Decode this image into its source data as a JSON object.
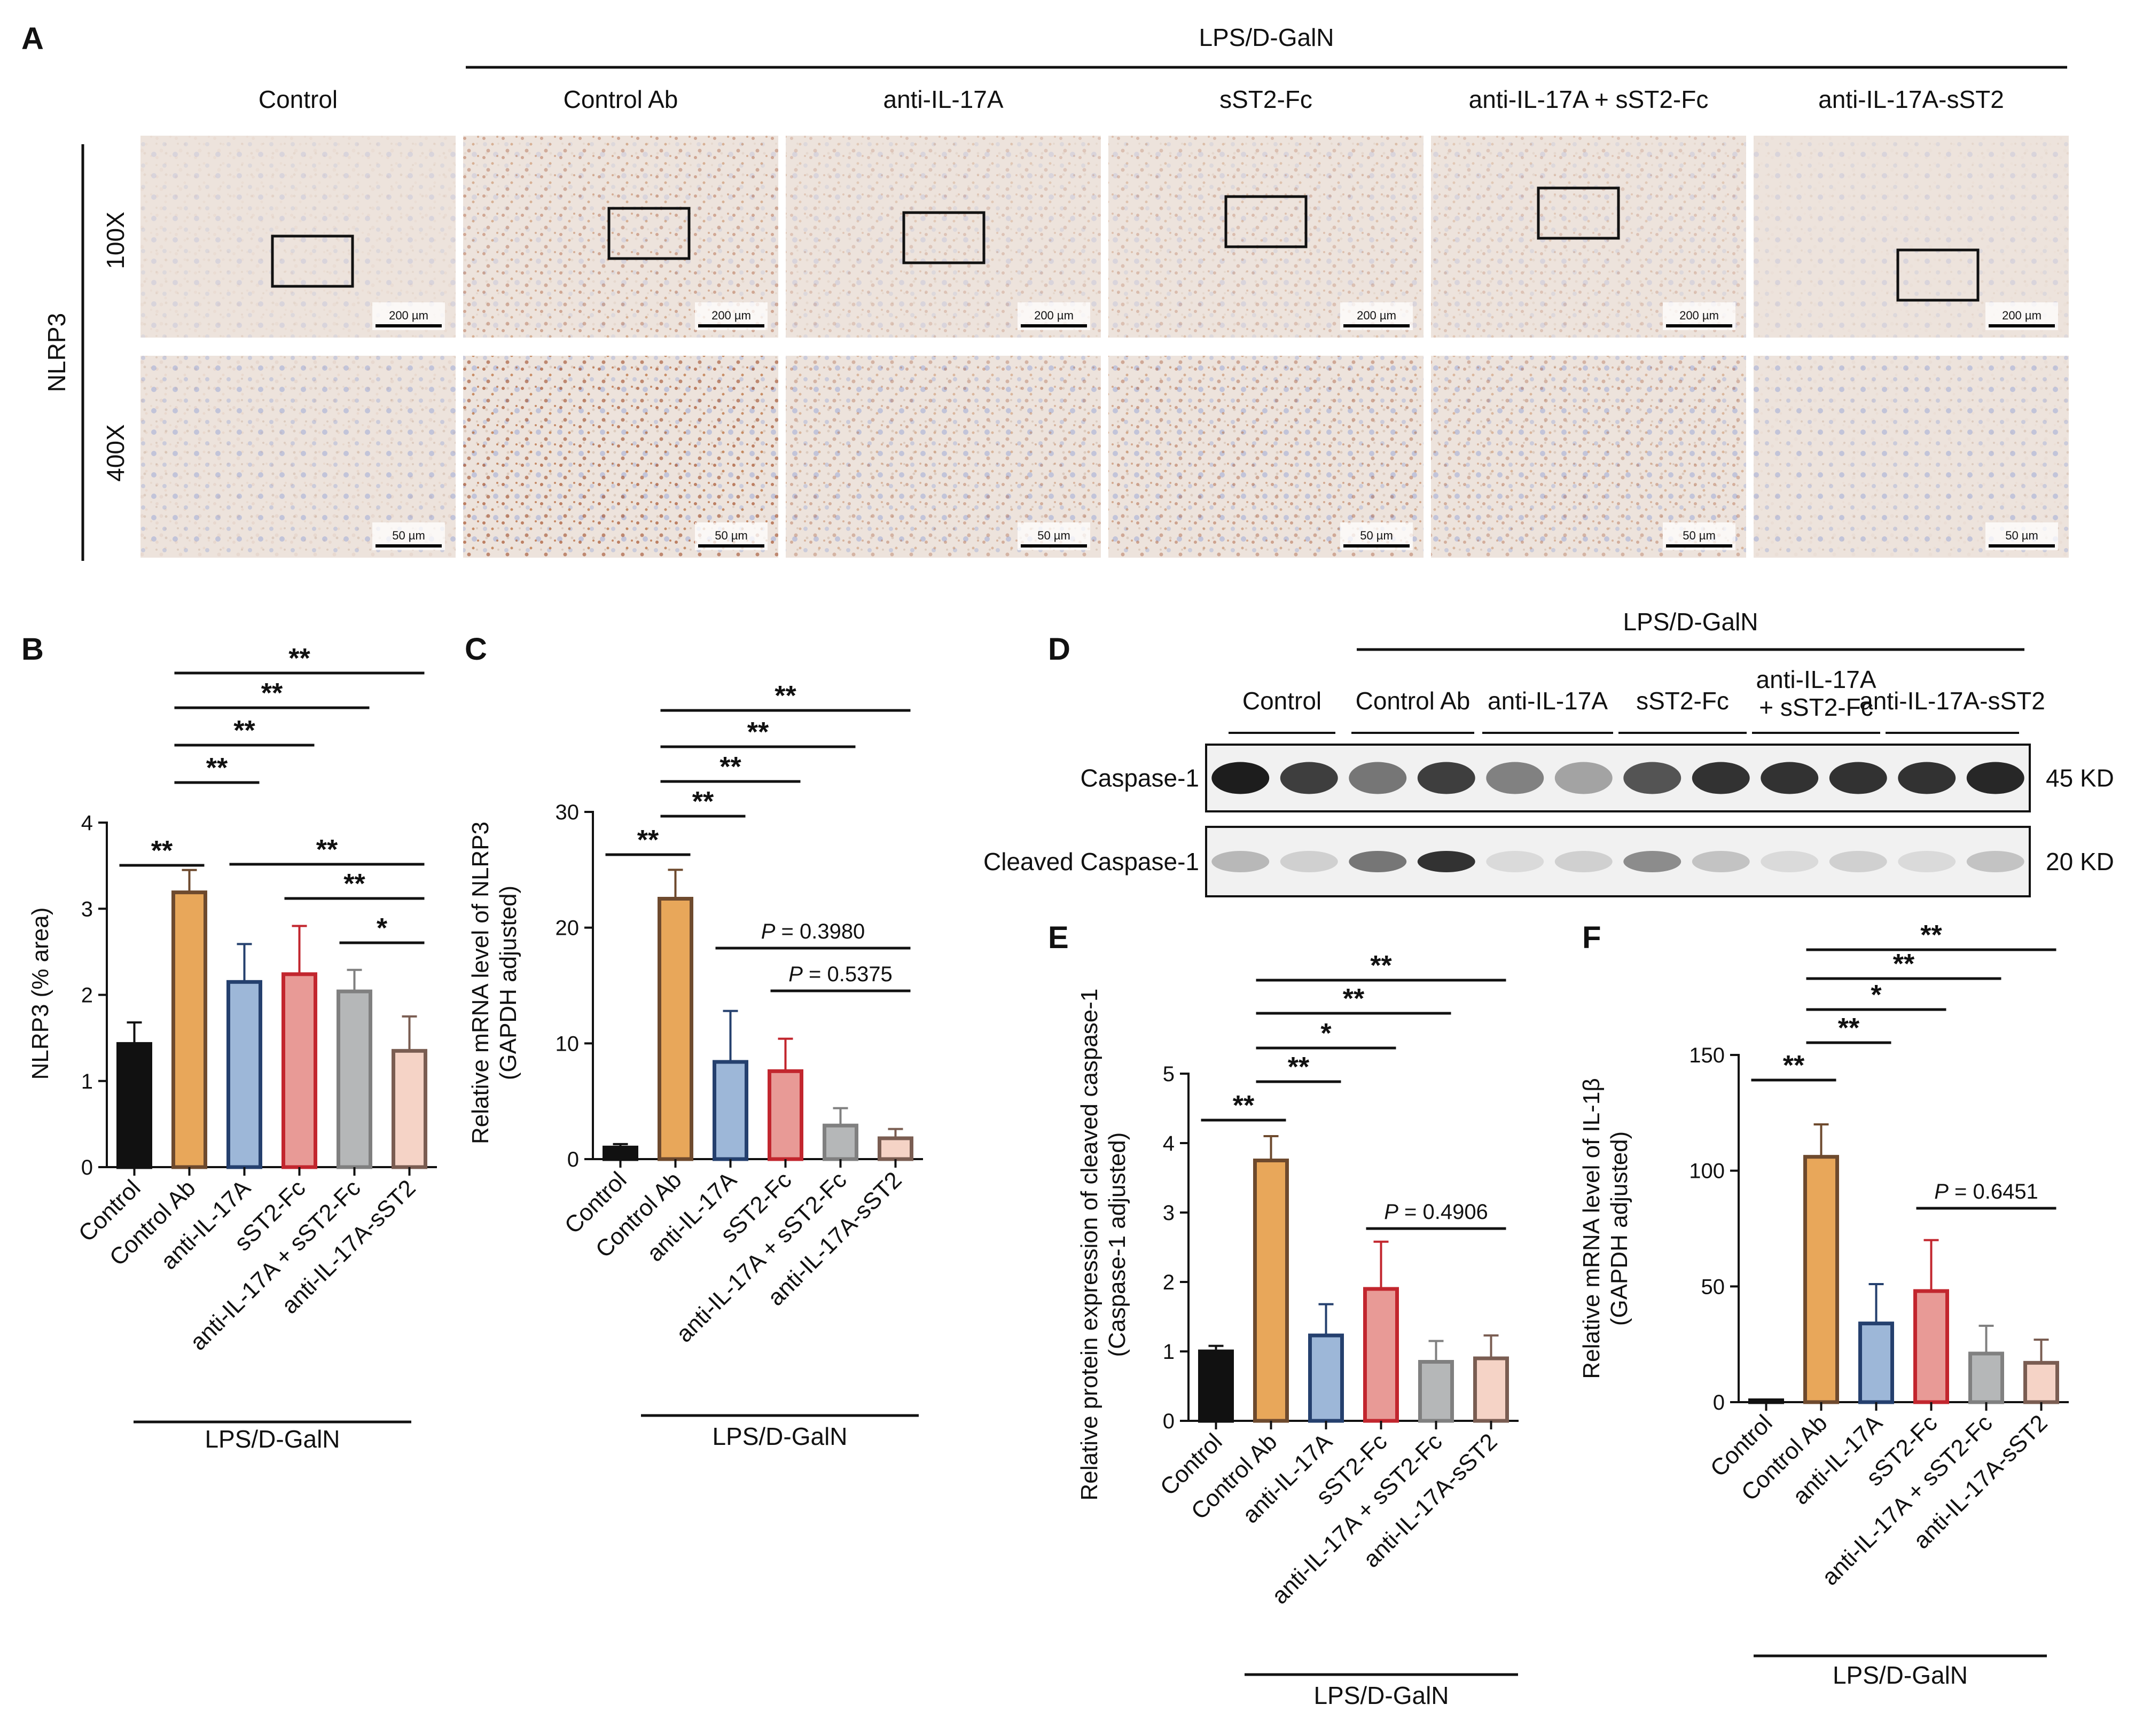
{
  "panels": {
    "A": "A",
    "B": "B",
    "C": "C",
    "D": "D",
    "E": "E",
    "F": "F"
  },
  "treatment_label": "LPS/D-GalN",
  "groups": [
    "Control",
    "Control Ab",
    "anti-IL-17A",
    "sST2-Fc",
    "anti-IL-17A + sST2-Fc",
    "anti-IL-17A-sST2"
  ],
  "colors": {
    "fills": [
      "#111111",
      "#e8a75a",
      "#9db7d8",
      "#e89a96",
      "#b5b7b8",
      "#f5d3c6"
    ],
    "edges": [
      "#111111",
      "#6e4a2e",
      "#25406e",
      "#c2262e",
      "#808080",
      "#7a5d52"
    ]
  },
  "panelA": {
    "stain": "NLRP3",
    "mags": [
      "100X",
      "400X"
    ],
    "scale_100x": "200 µm",
    "scale_400x": "50 µm",
    "intensity": [
      0.1,
      0.85,
      0.45,
      0.55,
      0.45,
      0.05
    ]
  },
  "panelD": {
    "lanes": [
      "Control",
      "Control Ab",
      "anti-IL-17A",
      "sST2-Fc",
      "anti-IL-17A",
      "+ sST2-Fc",
      "anti-IL-17A-sST2"
    ],
    "rows": [
      "Caspase-1",
      "Cleaved Caspase-1"
    ],
    "sizes": [
      "45 KD",
      "20 KD"
    ],
    "caspase_intensity": [
      0.95,
      0.8,
      0.55,
      0.8,
      0.5,
      0.35,
      0.7,
      0.85,
      0.85,
      0.85,
      0.85,
      0.9
    ],
    "cleaved_intensity": [
      0.25,
      0.15,
      0.55,
      0.85,
      0.1,
      0.15,
      0.45,
      0.2,
      0.1,
      0.15,
      0.1,
      0.2
    ]
  },
  "chart_data": [
    {
      "id": "B",
      "type": "bar",
      "ylabel": "NLRP3 (% area)",
      "ylim": [
        0,
        4
      ],
      "yticks": [
        0,
        1,
        2,
        3,
        4
      ],
      "categories": [
        "Control",
        "Control Ab",
        "anti-IL-17A",
        "sST2-Fc",
        "anti-IL-17A + sST2-Fc",
        "anti-IL-17A-sST2"
      ],
      "values": [
        1.43,
        3.19,
        2.15,
        2.24,
        2.04,
        1.35
      ],
      "errors": [
        0.25,
        0.26,
        0.44,
        0.56,
        0.25,
        0.4
      ],
      "significance": [
        {
          "from": 0,
          "to": 1,
          "label": "**"
        },
        {
          "from": 1,
          "to": 2,
          "label": "**"
        },
        {
          "from": 1,
          "to": 3,
          "label": "**"
        },
        {
          "from": 1,
          "to": 4,
          "label": "**"
        },
        {
          "from": 1,
          "to": 5,
          "label": "**"
        },
        {
          "from": 2,
          "to": 5,
          "label": "**"
        },
        {
          "from": 3,
          "to": 5,
          "label": "**"
        },
        {
          "from": 4,
          "to": 5,
          "label": "*"
        }
      ]
    },
    {
      "id": "C",
      "type": "bar",
      "ylabel": [
        "Relative mRNA level of NLRP3",
        "(GAPDH adjusted)"
      ],
      "ylim": [
        0,
        30
      ],
      "yticks": [
        0,
        10,
        20,
        30
      ],
      "categories": [
        "Control",
        "Control Ab",
        "anti-IL-17A",
        "sST2-Fc",
        "anti-IL-17A + sST2-Fc",
        "anti-IL-17A-sST2"
      ],
      "values": [
        1.0,
        22.5,
        8.4,
        7.6,
        2.9,
        1.8
      ],
      "errors": [
        0.3,
        2.5,
        4.4,
        2.8,
        1.5,
        0.8
      ],
      "significance": [
        {
          "from": 0,
          "to": 1,
          "label": "**"
        },
        {
          "from": 1,
          "to": 2,
          "label": "**"
        },
        {
          "from": 1,
          "to": 3,
          "label": "**"
        },
        {
          "from": 1,
          "to": 4,
          "label": "**"
        },
        {
          "from": 1,
          "to": 5,
          "label": "**"
        },
        {
          "from": 2,
          "to": 5,
          "p": "0.3980"
        },
        {
          "from": 3,
          "to": 5,
          "p": "0.5375"
        }
      ]
    },
    {
      "id": "E",
      "type": "bar",
      "ylabel": [
        "Relative protein expression of cleaved caspase-1",
        "(Caspase-1 adjusted)"
      ],
      "ylim": [
        0,
        5
      ],
      "yticks": [
        0,
        1,
        2,
        3,
        4,
        5
      ],
      "categories": [
        "Control",
        "Control Ab",
        "anti-IL-17A",
        "sST2-Fc",
        "anti-IL-17A + sST2-Fc",
        "anti-IL-17A-sST2"
      ],
      "values": [
        1.0,
        3.75,
        1.23,
        1.9,
        0.85,
        0.9
      ],
      "errors": [
        0.08,
        0.35,
        0.45,
        0.68,
        0.3,
        0.33
      ],
      "significance": [
        {
          "from": 0,
          "to": 1,
          "label": "**"
        },
        {
          "from": 1,
          "to": 2,
          "label": "**"
        },
        {
          "from": 1,
          "to": 3,
          "label": "*"
        },
        {
          "from": 1,
          "to": 4,
          "label": "**"
        },
        {
          "from": 1,
          "to": 5,
          "label": "**"
        },
        {
          "from": 3,
          "to": 5,
          "p": "0.4906"
        }
      ]
    },
    {
      "id": "F",
      "type": "bar",
      "ylabel": [
        "Relative mRNA level of IL-1β",
        "(GAPDH adjusted)"
      ],
      "ylim": [
        0,
        150
      ],
      "yticks": [
        0,
        50,
        100,
        150
      ],
      "categories": [
        "Control",
        "Control Ab",
        "anti-IL-17A",
        "sST2-Fc",
        "anti-IL-17A + sST2-Fc",
        "anti-IL-17A-sST2"
      ],
      "values": [
        0.8,
        106,
        34,
        48,
        21,
        17
      ],
      "errors": [
        0.3,
        14,
        17,
        22,
        12,
        10
      ],
      "significance": [
        {
          "from": 0,
          "to": 1,
          "label": "**"
        },
        {
          "from": 1,
          "to": 2,
          "label": "**"
        },
        {
          "from": 1,
          "to": 3,
          "label": "*"
        },
        {
          "from": 1,
          "to": 4,
          "label": "**"
        },
        {
          "from": 1,
          "to": 5,
          "label": "**"
        },
        {
          "from": 3,
          "to": 5,
          "p": "0.6451"
        }
      ]
    }
  ]
}
